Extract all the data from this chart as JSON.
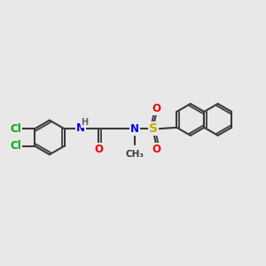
{
  "bg_color": "#e8e8e8",
  "bond_color": "#3a3a3a",
  "cl_color": "#00aa00",
  "n_color": "#0000ee",
  "o_color": "#ee0000",
  "s_color": "#ccaa00",
  "h_color": "#666666",
  "line_width": 1.5,
  "font_size_atom": 8.5,
  "fig_bg": "#e8e8e8",
  "xlim": [
    0,
    12
  ],
  "ylim": [
    0,
    10
  ]
}
